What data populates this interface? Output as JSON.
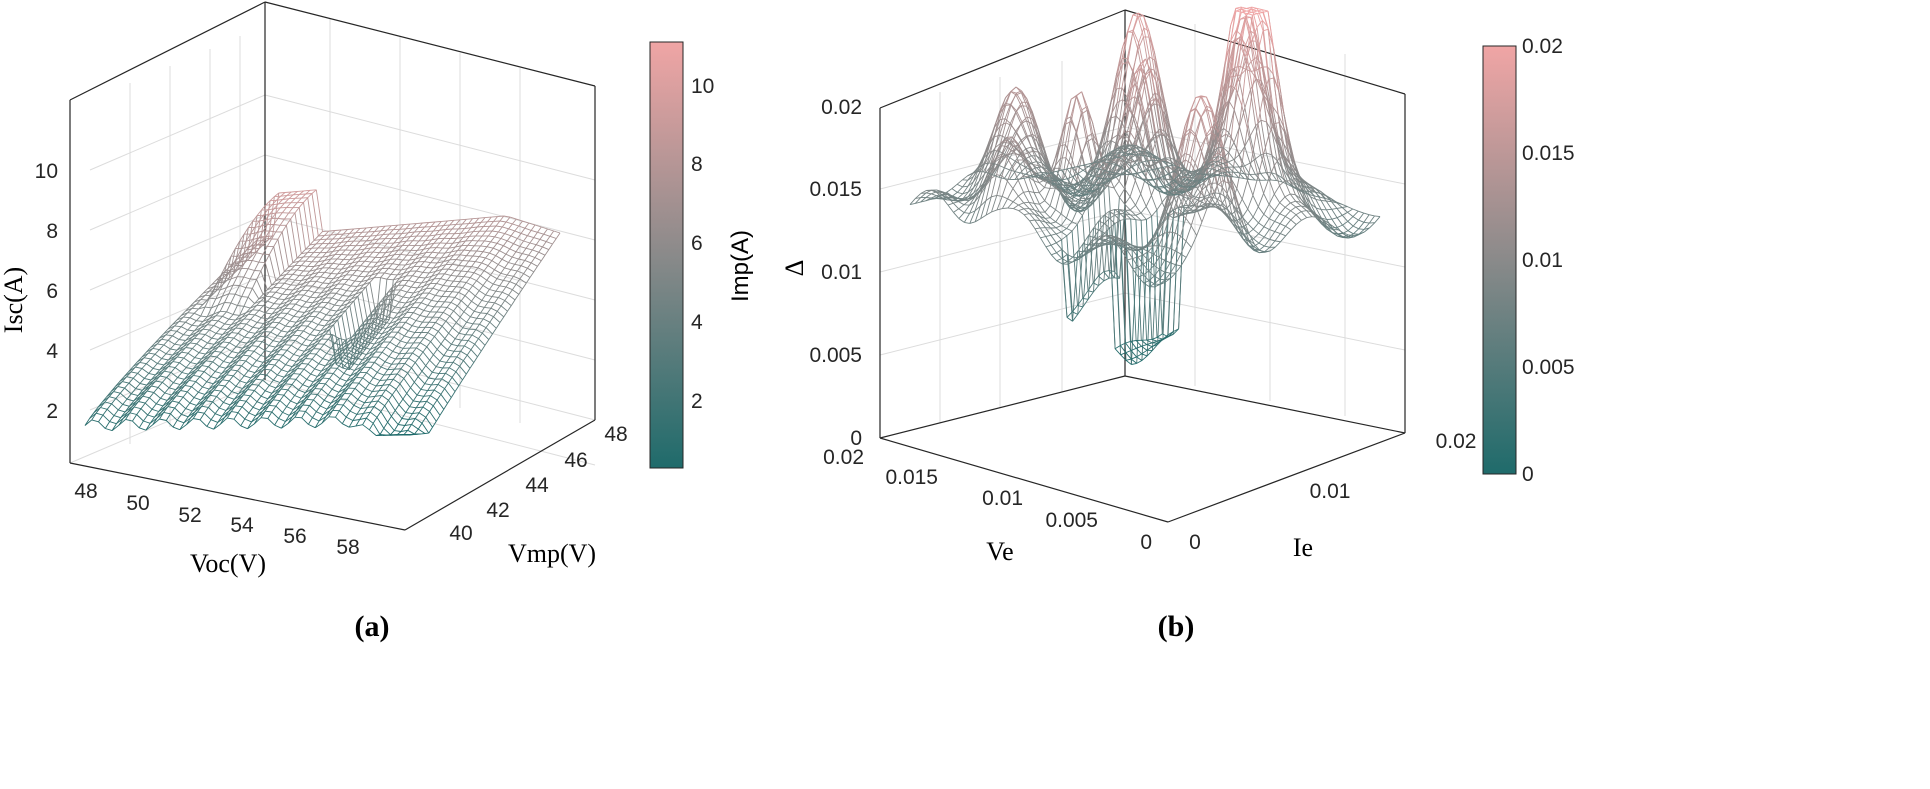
{
  "colors": {
    "low": "#1f6b6b",
    "mid": "#8a8a8a",
    "high": "#f0a5a5"
  },
  "chart_data": [
    {
      "type": "surface",
      "panel_label": "(a)",
      "xlabel": "Voc(V)",
      "ylabel": "Vmp(V)",
      "zlabel": "Isc(A)",
      "colorbar_label": "Imp(A)",
      "x_ticks": [
        "48",
        "50",
        "52",
        "54",
        "56",
        "58"
      ],
      "y_ticks": [
        "40",
        "42",
        "44",
        "46",
        "48"
      ],
      "z_ticks": [
        "2",
        "4",
        "6",
        "8",
        "10"
      ],
      "colorbar_ticks": [
        "2",
        "4",
        "6",
        "8",
        "10"
      ],
      "xlim": [
        47,
        59
      ],
      "ylim": [
        39,
        49
      ],
      "zlim": [
        1,
        12
      ],
      "clim": [
        0.5,
        11
      ],
      "grid": true
    },
    {
      "type": "surface",
      "panel_label": "(b)",
      "xlabel": "Ve",
      "ylabel": "Ie",
      "zlabel": "Δ",
      "x_ticks": [
        "0",
        "0.005",
        "0.01",
        "0.015",
        "0.02"
      ],
      "y_ticks": [
        "0",
        "0.01",
        "0.02"
      ],
      "z_ticks": [
        "0",
        "0.005",
        "0.01",
        "0.015",
        "0.02"
      ],
      "colorbar_ticks": [
        "0",
        "0.005",
        "0.01",
        "0.015",
        "0.02"
      ],
      "xlim": [
        0,
        0.02
      ],
      "ylim": [
        0,
        0.022
      ],
      "zlim": [
        0,
        0.02
      ],
      "clim": [
        0,
        0.02
      ],
      "grid": true
    }
  ]
}
